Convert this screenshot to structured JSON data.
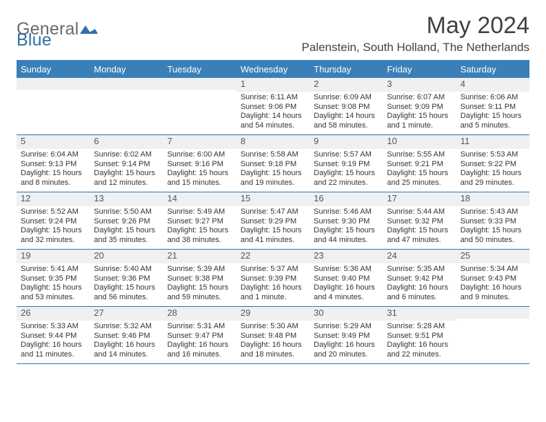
{
  "brand": {
    "text1": "General",
    "text2": "Blue",
    "mark_color": "#2f6fa6"
  },
  "title": "May 2024",
  "location": "Palenstein, South Holland, The Netherlands",
  "colors": {
    "header_bg": "#3b7fb8",
    "header_text": "#ffffff",
    "daynum_bg": "#eef0f2",
    "border": "#2f6fa6",
    "page_bg": "#ffffff",
    "title_color": "#424242",
    "logo_gray": "#6a6a6a"
  },
  "dow": [
    "Sunday",
    "Monday",
    "Tuesday",
    "Wednesday",
    "Thursday",
    "Friday",
    "Saturday"
  ],
  "weeks": [
    [
      null,
      null,
      null,
      {
        "n": "1",
        "sr": "Sunrise: 6:11 AM",
        "ss": "Sunset: 9:06 PM",
        "dl": "Daylight: 14 hours and 54 minutes."
      },
      {
        "n": "2",
        "sr": "Sunrise: 6:09 AM",
        "ss": "Sunset: 9:08 PM",
        "dl": "Daylight: 14 hours and 58 minutes."
      },
      {
        "n": "3",
        "sr": "Sunrise: 6:07 AM",
        "ss": "Sunset: 9:09 PM",
        "dl": "Daylight: 15 hours and 1 minute."
      },
      {
        "n": "4",
        "sr": "Sunrise: 6:06 AM",
        "ss": "Sunset: 9:11 PM",
        "dl": "Daylight: 15 hours and 5 minutes."
      }
    ],
    [
      {
        "n": "5",
        "sr": "Sunrise: 6:04 AM",
        "ss": "Sunset: 9:13 PM",
        "dl": "Daylight: 15 hours and 8 minutes."
      },
      {
        "n": "6",
        "sr": "Sunrise: 6:02 AM",
        "ss": "Sunset: 9:14 PM",
        "dl": "Daylight: 15 hours and 12 minutes."
      },
      {
        "n": "7",
        "sr": "Sunrise: 6:00 AM",
        "ss": "Sunset: 9:16 PM",
        "dl": "Daylight: 15 hours and 15 minutes."
      },
      {
        "n": "8",
        "sr": "Sunrise: 5:58 AM",
        "ss": "Sunset: 9:18 PM",
        "dl": "Daylight: 15 hours and 19 minutes."
      },
      {
        "n": "9",
        "sr": "Sunrise: 5:57 AM",
        "ss": "Sunset: 9:19 PM",
        "dl": "Daylight: 15 hours and 22 minutes."
      },
      {
        "n": "10",
        "sr": "Sunrise: 5:55 AM",
        "ss": "Sunset: 9:21 PM",
        "dl": "Daylight: 15 hours and 25 minutes."
      },
      {
        "n": "11",
        "sr": "Sunrise: 5:53 AM",
        "ss": "Sunset: 9:22 PM",
        "dl": "Daylight: 15 hours and 29 minutes."
      }
    ],
    [
      {
        "n": "12",
        "sr": "Sunrise: 5:52 AM",
        "ss": "Sunset: 9:24 PM",
        "dl": "Daylight: 15 hours and 32 minutes."
      },
      {
        "n": "13",
        "sr": "Sunrise: 5:50 AM",
        "ss": "Sunset: 9:26 PM",
        "dl": "Daylight: 15 hours and 35 minutes."
      },
      {
        "n": "14",
        "sr": "Sunrise: 5:49 AM",
        "ss": "Sunset: 9:27 PM",
        "dl": "Daylight: 15 hours and 38 minutes."
      },
      {
        "n": "15",
        "sr": "Sunrise: 5:47 AM",
        "ss": "Sunset: 9:29 PM",
        "dl": "Daylight: 15 hours and 41 minutes."
      },
      {
        "n": "16",
        "sr": "Sunrise: 5:46 AM",
        "ss": "Sunset: 9:30 PM",
        "dl": "Daylight: 15 hours and 44 minutes."
      },
      {
        "n": "17",
        "sr": "Sunrise: 5:44 AM",
        "ss": "Sunset: 9:32 PM",
        "dl": "Daylight: 15 hours and 47 minutes."
      },
      {
        "n": "18",
        "sr": "Sunrise: 5:43 AM",
        "ss": "Sunset: 9:33 PM",
        "dl": "Daylight: 15 hours and 50 minutes."
      }
    ],
    [
      {
        "n": "19",
        "sr": "Sunrise: 5:41 AM",
        "ss": "Sunset: 9:35 PM",
        "dl": "Daylight: 15 hours and 53 minutes."
      },
      {
        "n": "20",
        "sr": "Sunrise: 5:40 AM",
        "ss": "Sunset: 9:36 PM",
        "dl": "Daylight: 15 hours and 56 minutes."
      },
      {
        "n": "21",
        "sr": "Sunrise: 5:39 AM",
        "ss": "Sunset: 9:38 PM",
        "dl": "Daylight: 15 hours and 59 minutes."
      },
      {
        "n": "22",
        "sr": "Sunrise: 5:37 AM",
        "ss": "Sunset: 9:39 PM",
        "dl": "Daylight: 16 hours and 1 minute."
      },
      {
        "n": "23",
        "sr": "Sunrise: 5:36 AM",
        "ss": "Sunset: 9:40 PM",
        "dl": "Daylight: 16 hours and 4 minutes."
      },
      {
        "n": "24",
        "sr": "Sunrise: 5:35 AM",
        "ss": "Sunset: 9:42 PM",
        "dl": "Daylight: 16 hours and 6 minutes."
      },
      {
        "n": "25",
        "sr": "Sunrise: 5:34 AM",
        "ss": "Sunset: 9:43 PM",
        "dl": "Daylight: 16 hours and 9 minutes."
      }
    ],
    [
      {
        "n": "26",
        "sr": "Sunrise: 5:33 AM",
        "ss": "Sunset: 9:44 PM",
        "dl": "Daylight: 16 hours and 11 minutes."
      },
      {
        "n": "27",
        "sr": "Sunrise: 5:32 AM",
        "ss": "Sunset: 9:46 PM",
        "dl": "Daylight: 16 hours and 14 minutes."
      },
      {
        "n": "28",
        "sr": "Sunrise: 5:31 AM",
        "ss": "Sunset: 9:47 PM",
        "dl": "Daylight: 16 hours and 16 minutes."
      },
      {
        "n": "29",
        "sr": "Sunrise: 5:30 AM",
        "ss": "Sunset: 9:48 PM",
        "dl": "Daylight: 16 hours and 18 minutes."
      },
      {
        "n": "30",
        "sr": "Sunrise: 5:29 AM",
        "ss": "Sunset: 9:49 PM",
        "dl": "Daylight: 16 hours and 20 minutes."
      },
      {
        "n": "31",
        "sr": "Sunrise: 5:28 AM",
        "ss": "Sunset: 9:51 PM",
        "dl": "Daylight: 16 hours and 22 minutes."
      },
      null
    ]
  ]
}
